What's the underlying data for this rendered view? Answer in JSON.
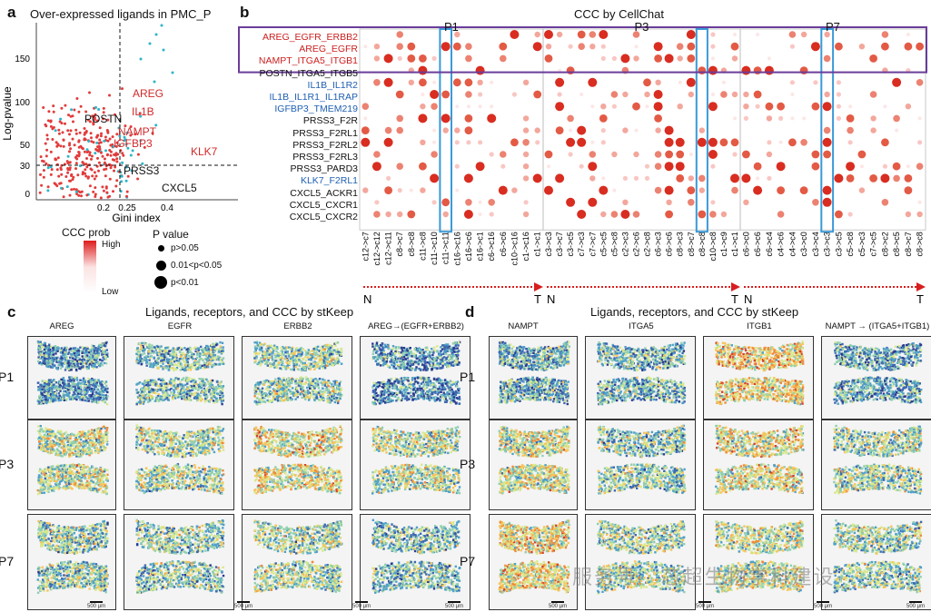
{
  "panel_a": {
    "label": "a",
    "title": "Over-expressed ligands in PMC_P",
    "xlabel": "Gini index",
    "ylabel": "Log-pvalue",
    "x_ticks": [
      "0.2",
      "0.25",
      "0.4"
    ],
    "y_ticks": [
      "0",
      "30",
      "50",
      "100",
      "150"
    ],
    "gene_labels_red": [
      "AREG",
      "IL1B",
      "NAMPT",
      "IGFBP3",
      "KLK7"
    ],
    "gene_labels_black": [
      "POSTN",
      "PRSS3",
      "CXCL5"
    ],
    "red_color": "#e23b3b",
    "teal_color": "#2bb5c8"
  },
  "legend": {
    "ccc_title": "CCC prob",
    "ccc_high": "High",
    "ccc_low": "Low",
    "p_title": "P value",
    "p_items": [
      "p>0.05",
      "0.01<p<0.05",
      "p<0.01"
    ]
  },
  "panel_b": {
    "label": "b",
    "title": "CCC by CellChat",
    "groups": [
      {
        "name": "P1",
        "cols": [
          "c12->c7",
          "c12->c12",
          "c12->c11",
          "c8->c7",
          "c8->c8",
          "c11->c8",
          "c11->c10",
          "c11->c11",
          "c16->c16",
          "c16->c6",
          "c16->c1",
          "c6->c16",
          "c6->c6",
          "c10->c16",
          "c1->c16",
          "c1->c1"
        ],
        "highlight": 7
      },
      {
        "name": "P3",
        "cols": [
          "c3->c3",
          "c3->c7",
          "c3->c5",
          "c7->c3",
          "c7->c7",
          "c5->c5",
          "c5->c8",
          "c2->c3",
          "c2->c6",
          "c2->c8",
          "c6->c3",
          "c6->c6",
          "c8->c3",
          "c8->c7",
          "c8->c8",
          "c10->c8",
          "c1->c9",
          "c1->c1"
        ],
        "highlight": 14
      },
      {
        "name": "P7",
        "cols": [
          "c6->c0",
          "c6->c6",
          "c6->c4",
          "c4->c6",
          "c4->c4",
          "c3->c0",
          "c3->c4",
          "c3->c3",
          "c3->c5",
          "c5->c8",
          "c5->c3",
          "c7->c5",
          "c8->c2",
          "c8->c5",
          "c8->c7",
          "c8->c8"
        ],
        "highlight": 7
      }
    ],
    "rows": [
      {
        "label": "AREG_EGFR_ERBB2",
        "color": "#cc2020"
      },
      {
        "label": "AREG_EGFR",
        "color": "#cc2020"
      },
      {
        "label": "NAMPT_ITGA5_ITGB1",
        "color": "#cc2020"
      },
      {
        "label": "POSTN_ITGA5_ITGB5",
        "color": "#111111"
      },
      {
        "label": "IL1B_IL1R2",
        "color": "#1f5fb3"
      },
      {
        "label": "IL1B_IL1R1_IL1RAP",
        "color": "#1f5fb3"
      },
      {
        "label": "IGFBP3_TMEM219",
        "color": "#1f5fb3"
      },
      {
        "label": "PRSS3_F2R",
        "color": "#111111"
      },
      {
        "label": "PRSS3_F2RL1",
        "color": "#111111"
      },
      {
        "label": "PRSS3_F2RL2",
        "color": "#111111"
      },
      {
        "label": "PRSS3_F2RL3",
        "color": "#111111"
      },
      {
        "label": "PRSS3_PARD3",
        "color": "#111111"
      },
      {
        "label": "KLK7_F2RL1",
        "color": "#1f5fb3"
      },
      {
        "label": "CXCL5_ACKR1",
        "color": "#111111"
      },
      {
        "label": "CXCL5_CXCR1",
        "color": "#111111"
      },
      {
        "label": "CXCL5_CXCR2",
        "color": "#111111"
      }
    ],
    "axis_start": "N",
    "axis_end": "T",
    "box_color": "#6a3d9a",
    "highlight_color": "#3a9ad9"
  },
  "panel_c": {
    "label": "c",
    "title": "Ligands, receptors, and CCC by stKeep",
    "cols": [
      "AREG",
      "EGFR",
      "ERBB2",
      "AREG→(EGFR+ERBB2)"
    ],
    "rows": [
      "P1",
      "P3",
      "P7"
    ],
    "scale": "500 μm"
  },
  "panel_d": {
    "label": "d",
    "title": "Ligands, receptors, and CCC by stKeep",
    "cols": [
      "NAMPT",
      "ITGA5",
      "ITGB1",
      "NAMPT → (ITGA5+ITGB1)"
    ],
    "rows": [
      "P1",
      "P3",
      "P7"
    ],
    "scale": "500 μm"
  },
  "watermark": "服务号 · 芯超生物学科建设"
}
